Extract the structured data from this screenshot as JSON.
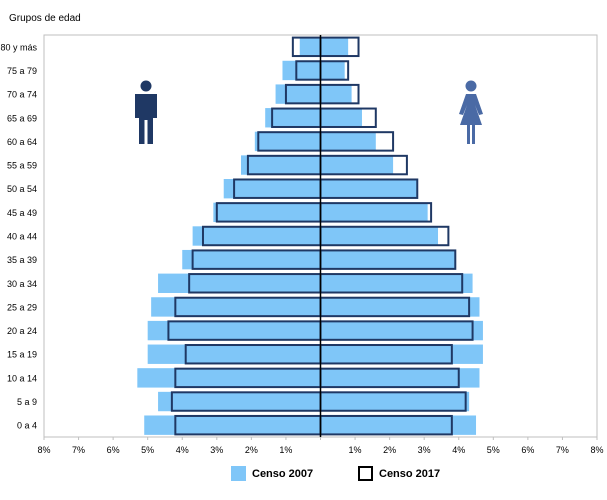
{
  "chart_data": {
    "type": "bar",
    "subtype": "population-pyramid",
    "title": "",
    "ylabel": "Grupos de edad",
    "xlabel": "",
    "xlim": [
      -8,
      8
    ],
    "x_ticks": [
      -8,
      -7,
      -6,
      -5,
      -4,
      -3,
      -2,
      -1,
      0,
      1,
      2,
      3,
      4,
      5,
      6,
      7,
      8
    ],
    "x_tick_labels": [
      "8%",
      "7%",
      "6%",
      "5%",
      "4%",
      "3%",
      "2%",
      "1%",
      "",
      "1%",
      "2%",
      "3%",
      "4%",
      "5%",
      "6%",
      "7%",
      "8%"
    ],
    "categories": [
      "0 a 4",
      "5 a 9",
      "10 a 14",
      "15 a 19",
      "20 a 24",
      "25 a 29",
      "30 a 34",
      "35 a 39",
      "40 a 44",
      "45 a 49",
      "50 a 54",
      "55 a 59",
      "60 a 64",
      "65 a 69",
      "70 a 74",
      "75 a 79",
      "80 y más"
    ],
    "left_group_icon": "male-figure-icon",
    "right_group_icon": "female-figure-icon",
    "series": [
      {
        "name": "Censo 2007",
        "style": "filled",
        "color": "#7fc6f8",
        "male": [
          5.1,
          4.7,
          5.3,
          5.0,
          5.0,
          4.9,
          4.7,
          4.0,
          3.7,
          3.1,
          2.8,
          2.3,
          1.9,
          1.6,
          1.3,
          1.1,
          0.6
        ],
        "female": [
          4.5,
          4.3,
          4.6,
          4.7,
          4.7,
          4.6,
          4.4,
          3.9,
          3.4,
          3.1,
          2.8,
          2.1,
          1.6,
          1.2,
          0.9,
          0.7,
          0.8
        ]
      },
      {
        "name": "Censo 2017",
        "style": "outline",
        "color": "#000000",
        "male": [
          4.2,
          4.3,
          4.2,
          3.9,
          4.4,
          4.2,
          3.8,
          3.7,
          3.4,
          3.0,
          2.5,
          2.1,
          1.8,
          1.4,
          1.0,
          0.7,
          0.8
        ],
        "female": [
          3.8,
          4.2,
          4.0,
          3.8,
          4.4,
          4.3,
          4.1,
          3.9,
          3.7,
          3.2,
          2.8,
          2.5,
          2.1,
          1.6,
          1.1,
          0.8,
          1.1
        ]
      }
    ],
    "legend_position": "bottom-center",
    "grid": false
  }
}
